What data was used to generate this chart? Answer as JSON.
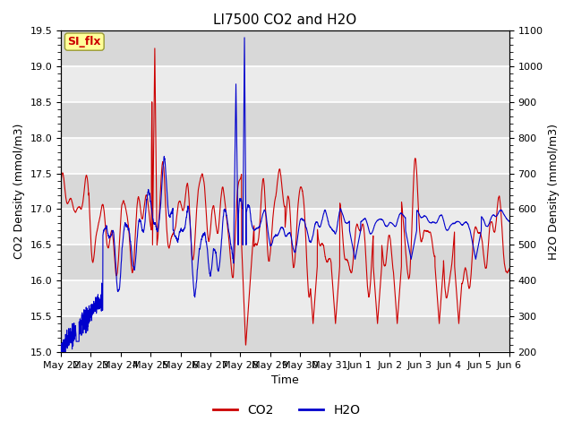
{
  "title": "LI7500 CO2 and H2O",
  "xlabel": "Time",
  "ylabel_left": "CO2 Density (mmol/m3)",
  "ylabel_right": "H2O Density (mmol/m3)",
  "ylim_left": [
    15.0,
    19.5
  ],
  "ylim_right": [
    200,
    1100
  ],
  "yticks_left": [
    15.0,
    15.5,
    16.0,
    16.5,
    17.0,
    17.5,
    18.0,
    18.5,
    19.0,
    19.5
  ],
  "yticks_right": [
    200,
    300,
    400,
    500,
    600,
    700,
    800,
    900,
    1000,
    1100
  ],
  "xtick_labels": [
    "May 22",
    "May 23",
    "May 24",
    "May 25",
    "May 26",
    "May 27",
    "May 28",
    "May 29",
    "May 30",
    "May 31",
    "Jun 1",
    "Jun 2",
    "Jun 3",
    "Jun 4",
    "Jun 5",
    "Jun 6"
  ],
  "co2_color": "#cc0000",
  "h2o_color": "#0000cc",
  "legend_co2": "CO2",
  "legend_h2o": "H2O",
  "annotation_text": "SI_flx",
  "annotation_color": "#cc0000",
  "annotation_bg": "#ffff99",
  "annotation_border": "#999933",
  "plot_bg_light": "#ebebeb",
  "plot_bg_dark": "#d8d8d8",
  "grid_color": "#ffffff",
  "num_points": 3000,
  "n_days": 16
}
